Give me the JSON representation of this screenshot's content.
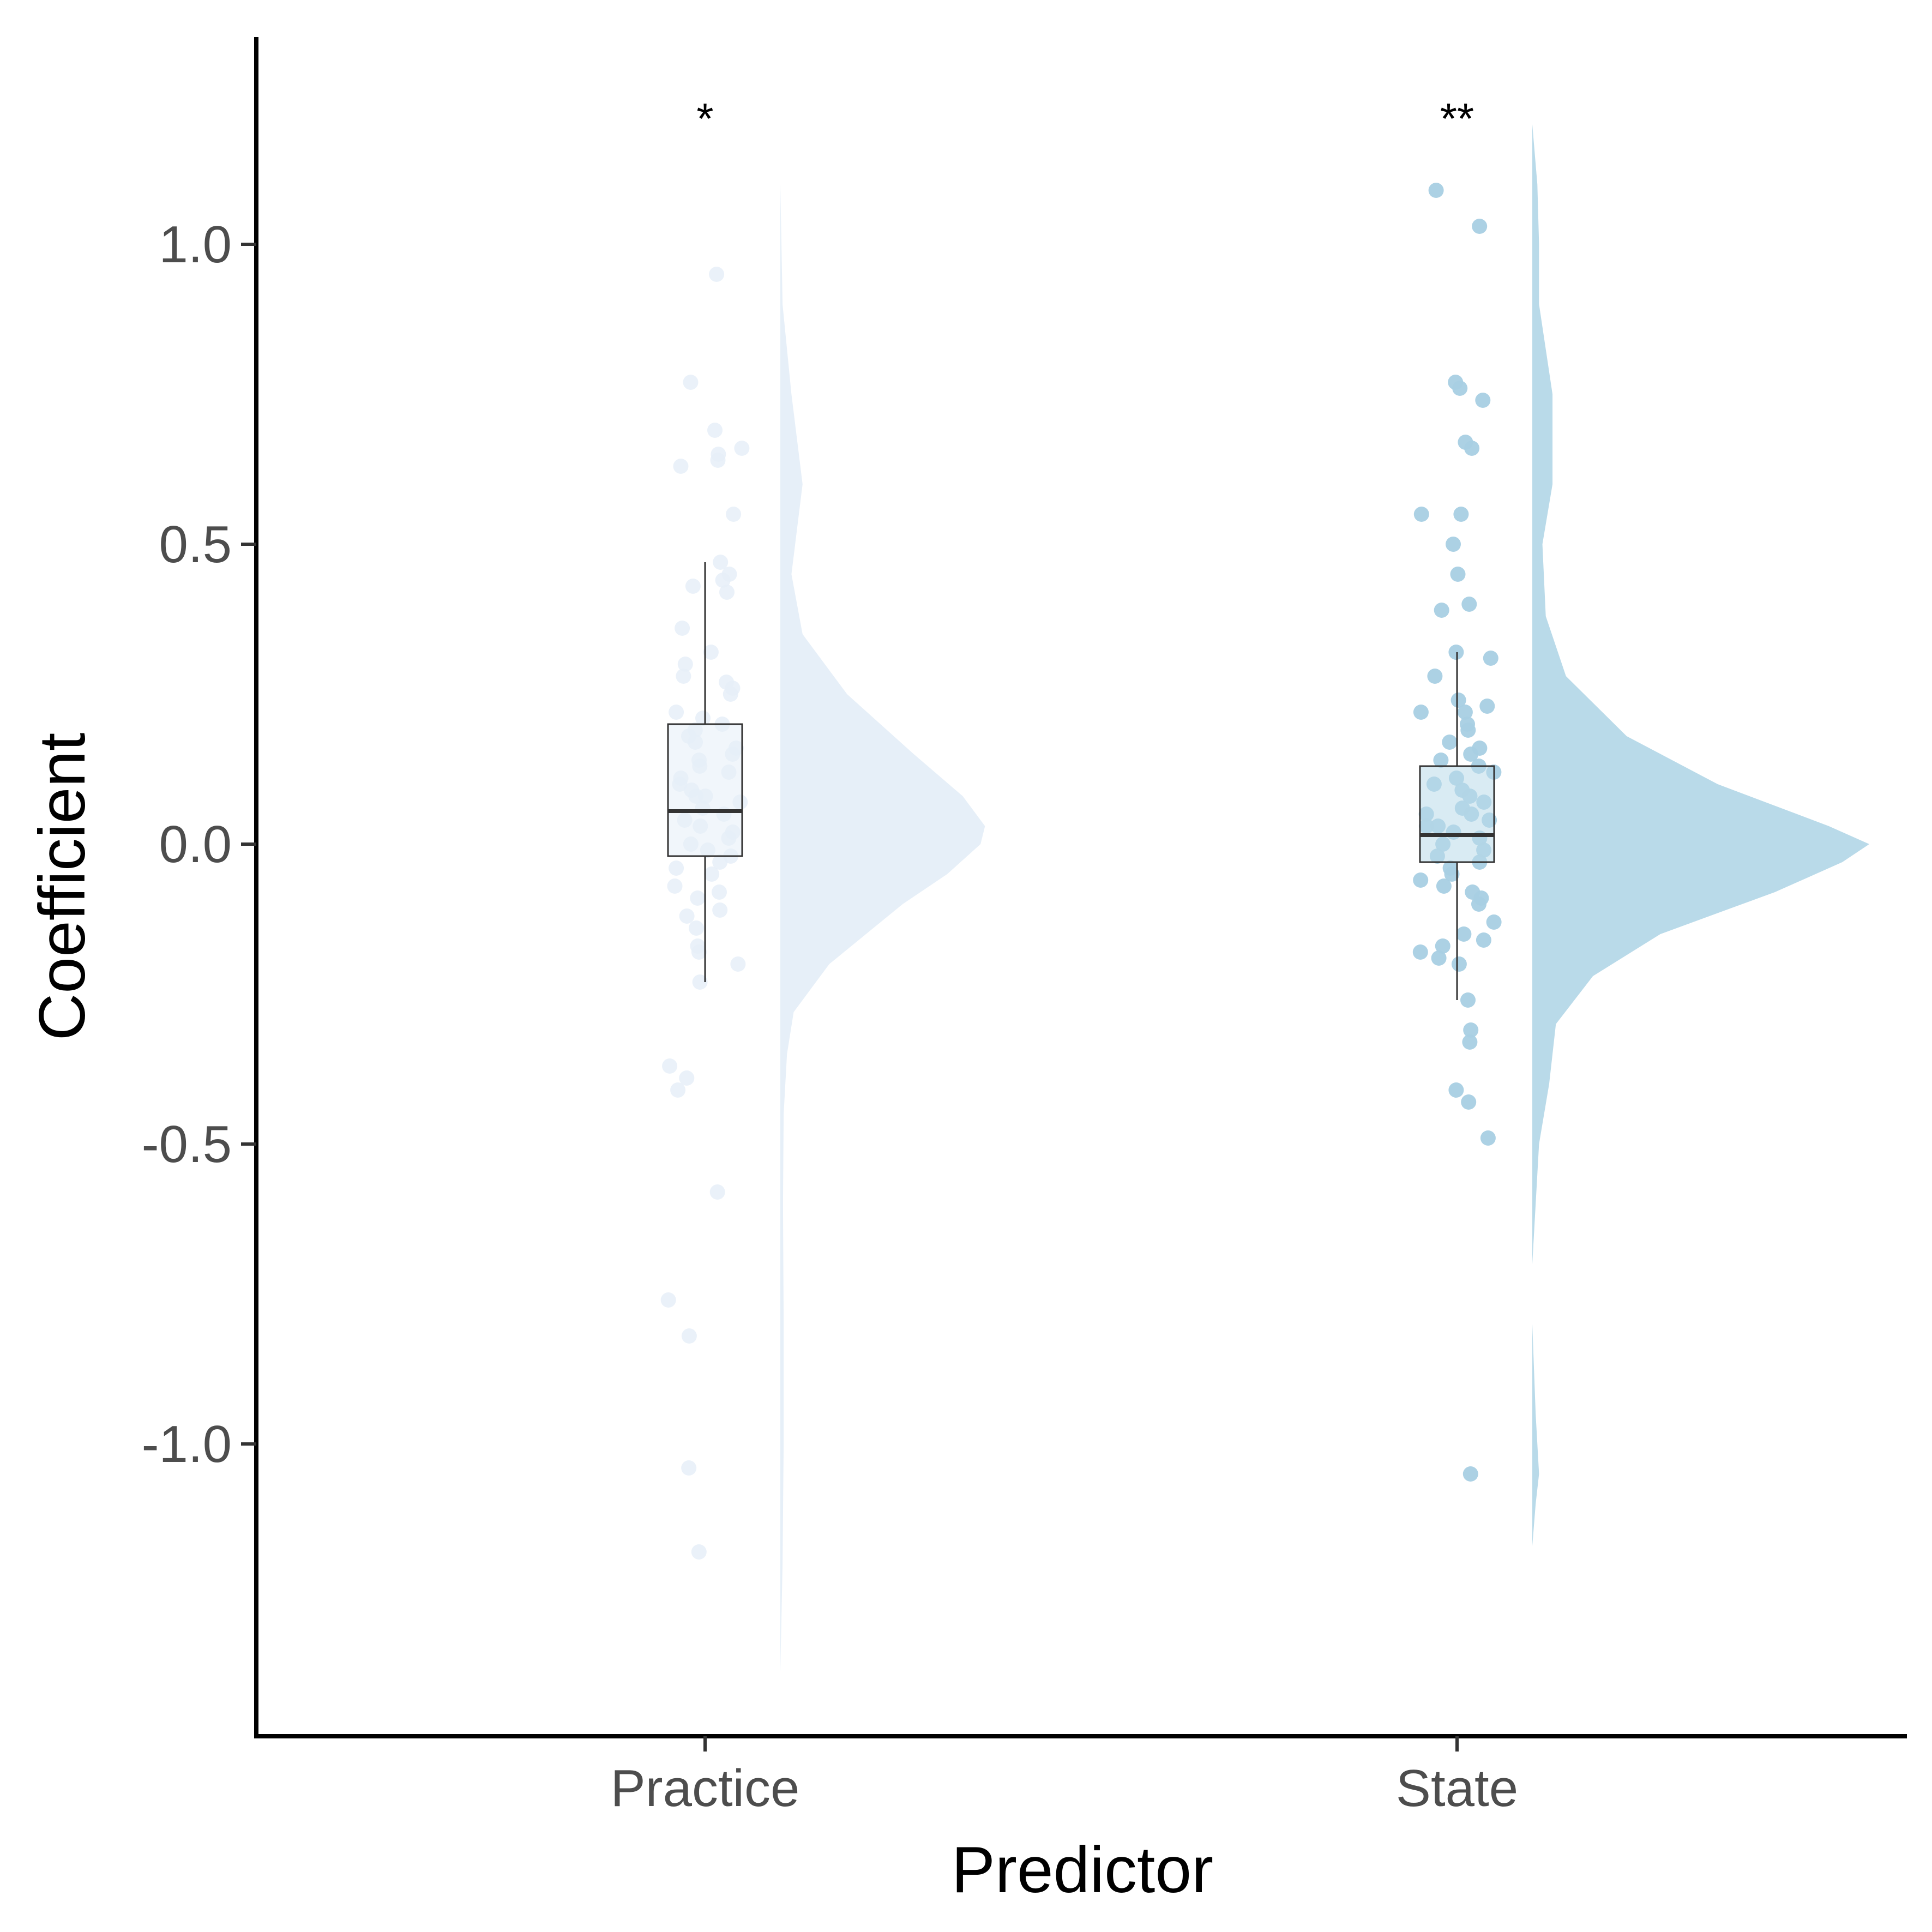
{
  "chart_data": {
    "type": "raincloud",
    "xlabel": "Predictor",
    "ylabel": "Coefficient",
    "ylim": [
      -1.45,
      1.37
    ],
    "yticks": [
      {
        "value": 1.0,
        "label": "1.0"
      },
      {
        "value": 0.5,
        "label": "0.5"
      },
      {
        "value": 0.0,
        "label": "0.0"
      },
      {
        "value": -0.5,
        "label": "-0.5"
      },
      {
        "value": -1.0,
        "label": "-1.0"
      }
    ],
    "grid": false,
    "legend": "none",
    "categories": [
      "Practice",
      "State"
    ],
    "groups": [
      {
        "category": "Practice",
        "significance": "*",
        "color": "#e6eff8",
        "box": {
          "whisker_low": -0.23,
          "q1": -0.02,
          "median": 0.055,
          "q3": 0.2,
          "whisker_high": 0.47
        },
        "density": [
          [
            -1.38,
            0.0
          ],
          [
            -1.2,
            0.01
          ],
          [
            -1.0,
            0.015
          ],
          [
            -0.8,
            0.015
          ],
          [
            -0.6,
            0.012
          ],
          [
            -0.45,
            0.015
          ],
          [
            -0.35,
            0.03
          ],
          [
            -0.28,
            0.06
          ],
          [
            -0.2,
            0.22
          ],
          [
            -0.1,
            0.55
          ],
          [
            -0.05,
            0.75
          ],
          [
            0.0,
            0.9
          ],
          [
            0.03,
            0.92
          ],
          [
            0.08,
            0.82
          ],
          [
            0.15,
            0.6
          ],
          [
            0.25,
            0.3
          ],
          [
            0.35,
            0.1
          ],
          [
            0.45,
            0.05
          ],
          [
            0.6,
            0.1
          ],
          [
            0.75,
            0.05
          ],
          [
            0.9,
            0.01
          ],
          [
            1.1,
            0.0
          ]
        ],
        "points": [
          0.95,
          0.77,
          0.69,
          0.66,
          0.65,
          0.64,
          0.63,
          0.55,
          0.47,
          0.45,
          0.44,
          0.43,
          0.42,
          0.36,
          0.32,
          0.3,
          0.28,
          0.27,
          0.26,
          0.25,
          0.22,
          0.21,
          0.2,
          0.19,
          0.18,
          0.17,
          0.16,
          0.15,
          0.14,
          0.13,
          0.12,
          0.11,
          0.1,
          0.09,
          0.08,
          0.08,
          0.07,
          0.06,
          0.05,
          0.04,
          0.03,
          0.02,
          0.01,
          0.0,
          -0.01,
          -0.02,
          -0.03,
          -0.04,
          -0.05,
          -0.07,
          -0.08,
          -0.09,
          -0.11,
          -0.12,
          -0.14,
          -0.17,
          -0.18,
          -0.2,
          -0.23,
          -0.37,
          -0.39,
          -0.41,
          -0.58,
          -0.76,
          -0.82,
          -1.04,
          -1.18
        ]
      },
      {
        "category": "State",
        "significance": "**",
        "color": "#b9dae9",
        "point_color": "#a8cfe3",
        "box": {
          "whisker_low": -0.26,
          "q1": -0.03,
          "median": 0.015,
          "q3": 0.13,
          "whisker_high": 0.32
        },
        "density": [
          [
            -1.17,
            0.0
          ],
          [
            -1.1,
            0.01
          ],
          [
            -1.05,
            0.02
          ],
          [
            -0.95,
            0.01
          ],
          [
            -0.8,
            0.0
          ],
          [
            -0.7,
            0.0
          ],
          [
            -0.6,
            0.01
          ],
          [
            -0.5,
            0.02
          ],
          [
            -0.4,
            0.05
          ],
          [
            -0.3,
            0.07
          ],
          [
            -0.22,
            0.18
          ],
          [
            -0.15,
            0.38
          ],
          [
            -0.08,
            0.72
          ],
          [
            -0.03,
            0.92
          ],
          [
            0.0,
            1.0
          ],
          [
            0.03,
            0.88
          ],
          [
            0.1,
            0.55
          ],
          [
            0.18,
            0.28
          ],
          [
            0.28,
            0.1
          ],
          [
            0.38,
            0.04
          ],
          [
            0.5,
            0.03
          ],
          [
            0.6,
            0.06
          ],
          [
            0.75,
            0.06
          ],
          [
            0.9,
            0.02
          ],
          [
            1.0,
            0.02
          ],
          [
            1.1,
            0.015
          ],
          [
            1.2,
            0.0
          ]
        ],
        "points": [
          1.09,
          1.03,
          0.77,
          0.76,
          0.74,
          0.67,
          0.66,
          0.55,
          0.55,
          0.5,
          0.45,
          0.4,
          0.39,
          0.32,
          0.31,
          0.28,
          0.24,
          0.23,
          0.22,
          0.22,
          0.2,
          0.19,
          0.17,
          0.16,
          0.15,
          0.14,
          0.13,
          0.12,
          0.11,
          0.1,
          0.09,
          0.08,
          0.07,
          0.06,
          0.05,
          0.05,
          0.04,
          0.03,
          0.03,
          0.02,
          0.01,
          0.0,
          -0.01,
          -0.02,
          -0.03,
          -0.04,
          -0.05,
          -0.06,
          -0.07,
          -0.08,
          -0.09,
          -0.1,
          -0.13,
          -0.15,
          -0.16,
          -0.17,
          -0.18,
          -0.19,
          -0.2,
          -0.26,
          -0.31,
          -0.33,
          -0.41,
          -0.43,
          -0.49,
          -1.05
        ]
      }
    ]
  }
}
